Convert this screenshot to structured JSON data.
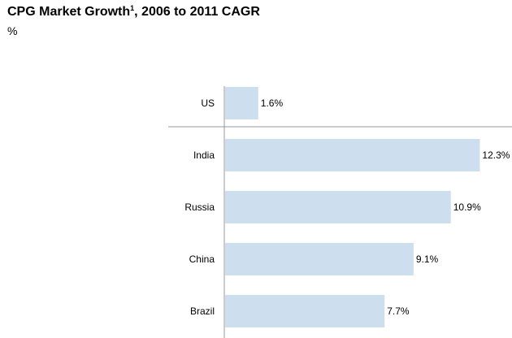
{
  "chart_data": {
    "type": "bar",
    "orientation": "horizontal",
    "title": "CPG Market Growth",
    "title_footnote": "1",
    "title_suffix": ", 2006 to 2011 CAGR",
    "unit": "%",
    "categories": [
      "US",
      "India",
      "Russia",
      "China",
      "Brazil"
    ],
    "values": [
      1.6,
      12.3,
      10.9,
      9.1,
      7.7
    ],
    "value_labels": [
      "1.6%",
      "12.3%",
      "10.9%",
      "9.1%",
      "7.7%"
    ],
    "xlim": [
      0,
      13.5
    ],
    "separator_after_category": "US",
    "bar_color": "#cddfee",
    "axis_color": "#999999"
  }
}
